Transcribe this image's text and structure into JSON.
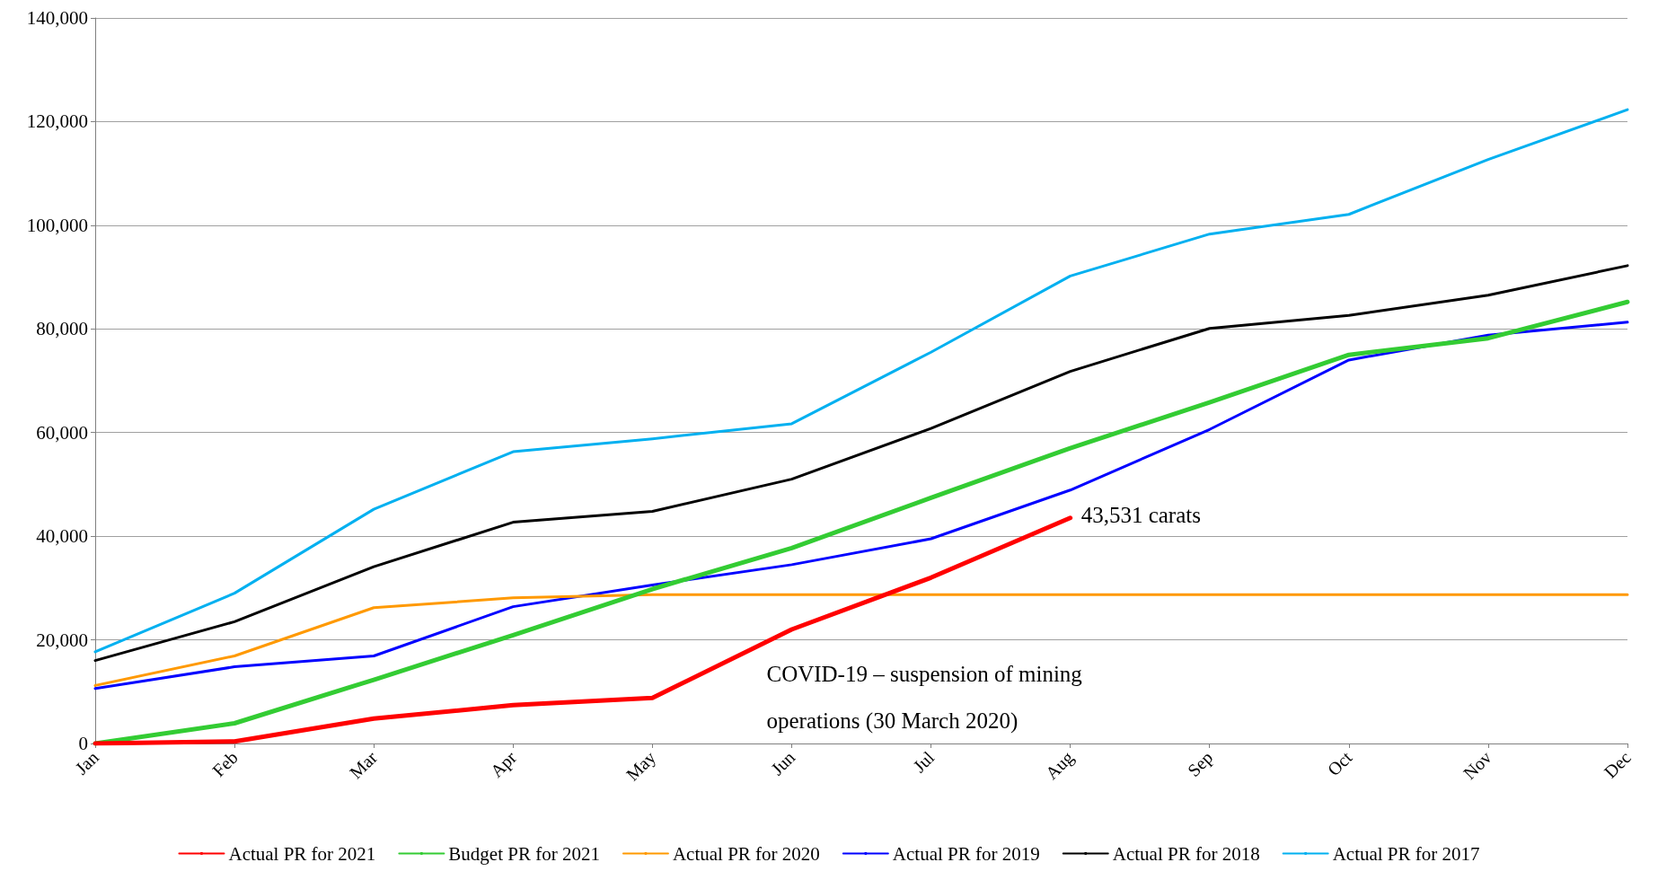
{
  "chart_data": {
    "type": "line",
    "categories": [
      "Jan",
      "Feb",
      "Mar",
      "Apr",
      "May",
      "Jun",
      "Jul",
      "Aug",
      "Sep",
      "Oct",
      "Nov",
      "Dec"
    ],
    "series": [
      {
        "name": "Actual PR for 2021",
        "color": "#ff0000",
        "values": [
          0,
          400,
          4800,
          7400,
          8800,
          22000,
          32000,
          43531,
          null,
          null,
          null,
          null
        ]
      },
      {
        "name": "Budget PR for 2021",
        "color": "#33cc33",
        "values": [
          0,
          3900,
          12300,
          20900,
          29800,
          37700,
          47400,
          57000,
          65800,
          75000,
          78200,
          85200
        ]
      },
      {
        "name": "Actual PR for 2020",
        "color": "#ff9900",
        "values": [
          11200,
          16900,
          26200,
          28100,
          28700,
          28700,
          28700,
          28700,
          28700,
          28700,
          28700,
          28700
        ]
      },
      {
        "name": "Actual PR for 2019",
        "color": "#0000ff",
        "values": [
          10600,
          14800,
          16900,
          26400,
          30600,
          34500,
          39500,
          48900,
          60600,
          74000,
          78800,
          81300
        ]
      },
      {
        "name": "Actual PR for 2018",
        "color": "#000000",
        "values": [
          16000,
          23500,
          34100,
          42700,
          44800,
          51000,
          60800,
          71800,
          80100,
          82600,
          86500,
          92200
        ]
      },
      {
        "name": "Actual PR for 2017",
        "color": "#00b0f0",
        "values": [
          17700,
          29000,
          45200,
          56300,
          58800,
          61700,
          75500,
          90200,
          98300,
          102100,
          112700,
          122300
        ]
      }
    ],
    "ylim": [
      0,
      140000
    ],
    "yticks": [
      0,
      {
        "value": 20000,
        "label": "20,000"
      },
      {
        "value": 40000,
        "label": "40,000"
      },
      {
        "value": 60000,
        "label": "60,000"
      },
      {
        "value": 80000,
        "label": "80,000"
      },
      {
        "value": 100000,
        "label": "100,000"
      },
      {
        "value": 120000,
        "label": "120,000"
      },
      {
        "value": 140000,
        "label": "140,000"
      }
    ],
    "annotations": [
      {
        "text": "43,531 carats",
        "x": "Aug",
        "y": 43531
      },
      "COVID-19 – suspension of mining operations (30 March 2020)"
    ],
    "grid": "y",
    "legend": "bottom",
    "marker": "none",
    "line_style": "solid"
  }
}
